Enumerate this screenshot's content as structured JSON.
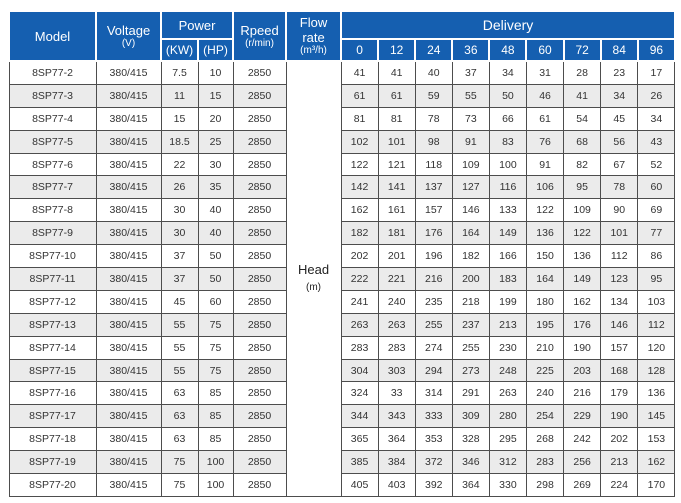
{
  "colors": {
    "header_blue": "#155fb0",
    "stripe_gray": "#ebebeb",
    "border_gray": "#4d4d4d"
  },
  "table": {
    "header": {
      "model": "Model",
      "voltage_line1": "Voltage",
      "voltage_line2": "(V)",
      "power": "Power",
      "power_kw": "(KW)",
      "power_hp": "(HP)",
      "rpeed_line1": "Rpeed",
      "rpeed_line2": "(r/min)",
      "flowrate_line1": "Flow rate",
      "flowrate_line2": "(m³/h)",
      "delivery": "Delivery",
      "delivery_cols": [
        "0",
        "12",
        "24",
        "36",
        "48",
        "60",
        "72",
        "84",
        "96"
      ]
    },
    "head_cell": {
      "line1": "Head",
      "line2": "(m)"
    },
    "rows": [
      {
        "model": "8SP77-2",
        "voltage": "380/415",
        "kw": "7.5",
        "hp": "10",
        "rpeed": "2850",
        "delivery": [
          41,
          41,
          40,
          37,
          34,
          31,
          28,
          23,
          17
        ]
      },
      {
        "model": "8SP77-3",
        "voltage": "380/415",
        "kw": "11",
        "hp": "15",
        "rpeed": "2850",
        "delivery": [
          61,
          61,
          59,
          55,
          50,
          46,
          41,
          34,
          26
        ]
      },
      {
        "model": "8SP77-4",
        "voltage": "380/415",
        "kw": "15",
        "hp": "20",
        "rpeed": "2850",
        "delivery": [
          81,
          81,
          78,
          73,
          66,
          61,
          54,
          45,
          34
        ]
      },
      {
        "model": "8SP77-5",
        "voltage": "380/415",
        "kw": "18.5",
        "hp": "25",
        "rpeed": "2850",
        "delivery": [
          102,
          101,
          98,
          91,
          83,
          76,
          68,
          56,
          43
        ]
      },
      {
        "model": "8SP77-6",
        "voltage": "380/415",
        "kw": "22",
        "hp": "30",
        "rpeed": "2850",
        "delivery": [
          122,
          121,
          118,
          109,
          100,
          91,
          82,
          67,
          52
        ]
      },
      {
        "model": "8SP77-7",
        "voltage": "380/415",
        "kw": "26",
        "hp": "35",
        "rpeed": "2850",
        "delivery": [
          142,
          141,
          137,
          127,
          116,
          106,
          95,
          78,
          60
        ]
      },
      {
        "model": "8SP77-8",
        "voltage": "380/415",
        "kw": "30",
        "hp": "40",
        "rpeed": "2850",
        "delivery": [
          162,
          161,
          157,
          146,
          133,
          122,
          109,
          90,
          69
        ]
      },
      {
        "model": "8SP77-9",
        "voltage": "380/415",
        "kw": "30",
        "hp": "40",
        "rpeed": "2850",
        "delivery": [
          182,
          181,
          176,
          164,
          149,
          136,
          122,
          101,
          77
        ]
      },
      {
        "model": "8SP77-10",
        "voltage": "380/415",
        "kw": "37",
        "hp": "50",
        "rpeed": "2850",
        "delivery": [
          202,
          201,
          196,
          182,
          166,
          150,
          136,
          112,
          86
        ]
      },
      {
        "model": "8SP77-11",
        "voltage": "380/415",
        "kw": "37",
        "hp": "50",
        "rpeed": "2850",
        "delivery": [
          222,
          221,
          216,
          200,
          183,
          164,
          149,
          123,
          95
        ]
      },
      {
        "model": "8SP77-12",
        "voltage": "380/415",
        "kw": "45",
        "hp": "60",
        "rpeed": "2850",
        "delivery": [
          241,
          240,
          235,
          218,
          199,
          180,
          162,
          134,
          103
        ]
      },
      {
        "model": "8SP77-13",
        "voltage": "380/415",
        "kw": "55",
        "hp": "75",
        "rpeed": "2850",
        "delivery": [
          263,
          263,
          255,
          237,
          213,
          195,
          176,
          146,
          112
        ]
      },
      {
        "model": "8SP77-14",
        "voltage": "380/415",
        "kw": "55",
        "hp": "75",
        "rpeed": "2850",
        "delivery": [
          283,
          283,
          274,
          255,
          230,
          210,
          190,
          157,
          120
        ]
      },
      {
        "model": "8SP77-15",
        "voltage": "380/415",
        "kw": "55",
        "hp": "75",
        "rpeed": "2850",
        "delivery": [
          304,
          303,
          294,
          273,
          248,
          225,
          203,
          168,
          128
        ]
      },
      {
        "model": "8SP77-16",
        "voltage": "380/415",
        "kw": "63",
        "hp": "85",
        "rpeed": "2850",
        "delivery": [
          324,
          33,
          314,
          291,
          263,
          240,
          216,
          179,
          136
        ]
      },
      {
        "model": "8SP77-17",
        "voltage": "380/415",
        "kw": "63",
        "hp": "85",
        "rpeed": "2850",
        "delivery": [
          344,
          343,
          333,
          309,
          280,
          254,
          229,
          190,
          145
        ]
      },
      {
        "model": "8SP77-18",
        "voltage": "380/415",
        "kw": "63",
        "hp": "85",
        "rpeed": "2850",
        "delivery": [
          365,
          364,
          353,
          328,
          295,
          268,
          242,
          202,
          153
        ]
      },
      {
        "model": "8SP77-19",
        "voltage": "380/415",
        "kw": "75",
        "hp": "100",
        "rpeed": "2850",
        "delivery": [
          385,
          384,
          372,
          346,
          312,
          283,
          256,
          213,
          162
        ]
      },
      {
        "model": "8SP77-20",
        "voltage": "380/415",
        "kw": "75",
        "hp": "100",
        "rpeed": "2850",
        "delivery": [
          405,
          403,
          392,
          364,
          330,
          298,
          269,
          224,
          170
        ]
      }
    ]
  }
}
